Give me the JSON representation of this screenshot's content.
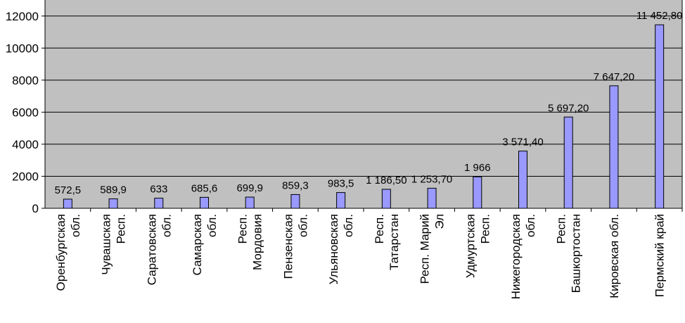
{
  "colors": {
    "plot_background": "#c0c0c0",
    "bar_fill": "#9999ff",
    "bar_stroke": "#000000",
    "gridline": "#000000"
  },
  "chart_data": {
    "type": "bar",
    "categories": [
      [
        "Оренбургская",
        "обл."
      ],
      [
        "Чувашская",
        "Респ."
      ],
      [
        "Саратовская",
        "обл."
      ],
      [
        "Самарская",
        "обл."
      ],
      [
        "Респ.",
        "Мордовия"
      ],
      [
        "Пензенская",
        "обл."
      ],
      [
        "Ульяновская",
        "обл."
      ],
      [
        "Респ.",
        "Татарстан"
      ],
      [
        "Респ. Марий",
        "Эл"
      ],
      [
        "Удмуртская",
        "Респ."
      ],
      [
        "Нижегородская",
        "обл."
      ],
      [
        "Респ.",
        "Башкортостан"
      ],
      [
        "Кировская обл."
      ],
      [
        "Пермский край"
      ]
    ],
    "values": [
      572.5,
      589.9,
      633,
      685.6,
      699.9,
      859.3,
      983.5,
      1186.5,
      1253.7,
      1966,
      3571.4,
      5697.2,
      7647.2,
      11452.8
    ],
    "data_labels": [
      "572,5",
      "589,9",
      "633",
      "685,6",
      "699,9",
      "859,3",
      "983,5",
      "1 186,50",
      "1 253,70",
      "1 966",
      "3 571,40",
      "5 697,20",
      "7 647,20",
      "11 452,80"
    ],
    "yticks": [
      "0",
      "2000",
      "4000",
      "6000",
      "8000",
      "10000",
      "12000"
    ],
    "ylim": [
      0,
      13000
    ],
    "grid": "horizontal major gridlines",
    "legend": "none",
    "title": "",
    "xlabel": "",
    "ylabel": ""
  }
}
